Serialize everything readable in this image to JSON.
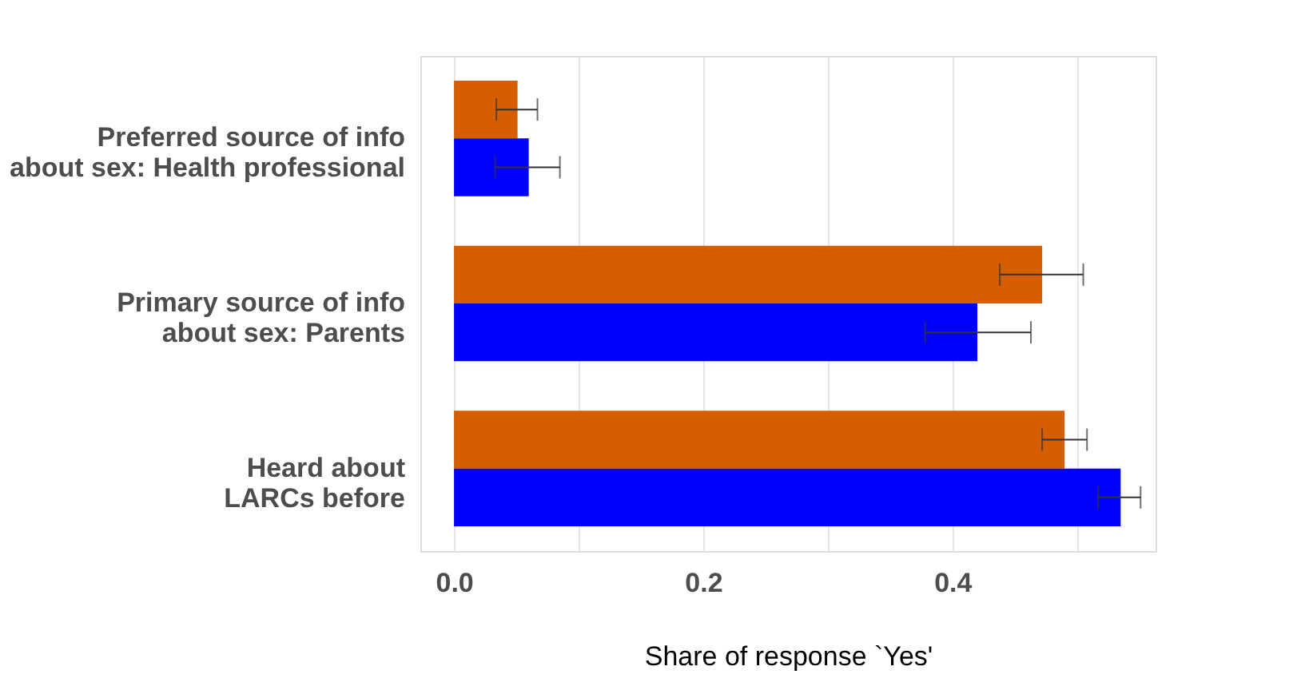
{
  "chart_data": {
    "type": "bar",
    "orientation": "horizontal",
    "categories": [
      "Preferred source of info \nabout sex: Health professional",
      "Primary source of info\nabout sex: Parents",
      "Heard about \nLARCs before"
    ],
    "series": [
      {
        "color": "#d55e00",
        "values": [
          0.051,
          0.472,
          0.49
        ],
        "errors": [
          [
            0.034,
            0.067
          ],
          [
            0.438,
            0.505
          ],
          [
            0.472,
            0.508
          ]
        ]
      },
      {
        "color": "#0000ff",
        "values": [
          0.06,
          0.42,
          0.535
        ],
        "errors": [
          [
            0.033,
            0.085
          ],
          [
            0.378,
            0.463
          ],
          [
            0.517,
            0.551
          ]
        ]
      }
    ],
    "xlabel": "Share of response `Yes'",
    "xlim": [
      -0.027,
      0.563
    ],
    "xticks": [
      {
        "value": 0,
        "label": "0.0"
      },
      {
        "value": 0.1,
        "label": null
      },
      {
        "value": 0.2,
        "label": "0.2"
      },
      {
        "value": 0.3,
        "label": null
      },
      {
        "value": 0.4,
        "label": "0.4"
      },
      {
        "value": 0.5,
        "label": null
      }
    ],
    "grid": "x",
    "legend": false
  }
}
